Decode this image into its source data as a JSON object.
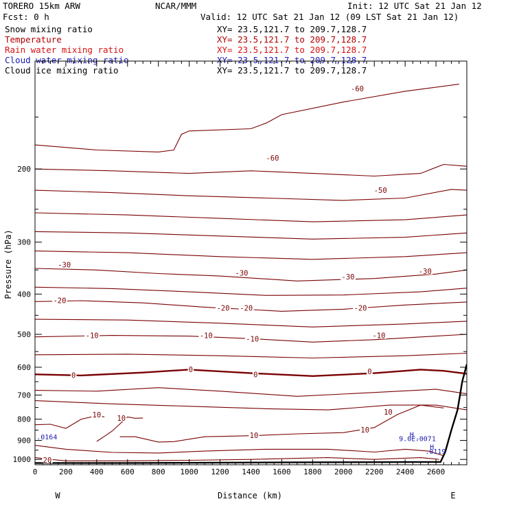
{
  "header": {
    "model": "TORERO  15km ARW",
    "center": "NCAR/MMM",
    "init": "Init: 12 UTC Sat 21 Jan 12",
    "fcst": "Fcst:    0 h",
    "valid": "Valid: 12 UTC Sat 21 Jan 12 (09 LST Sat 21 Jan 12)",
    "fields": [
      {
        "name": "Snow mixing ratio",
        "color": "#000000",
        "xy": "XY=  23.5,121.7 to 209.7,128.7"
      },
      {
        "name": "Temperature",
        "color": "#b00000",
        "xy": "XY=  23.5,121.7 to 209.7,128.7"
      },
      {
        "name": "Rain water mixing ratio",
        "color": "#d81010",
        "xy": "XY=  23.5,121.7 to 209.7,128.7"
      },
      {
        "name": "Cloud water mixing ratio",
        "color": "#1a1ab0",
        "xy": "XY=  23.5,121.7 to 209.7,128.7"
      },
      {
        "name": "Cloud ice mixing ratio",
        "color": "#000000",
        "xy": "XY=  23.5,121.7 to 209.7,128.7"
      }
    ]
  },
  "chart_data": {
    "type": "contour",
    "xlabel": "Distance (km)",
    "ylabel": "Pressure (hPa)",
    "xlim": [
      0,
      2800
    ],
    "ylim": [
      1030,
      110
    ],
    "y_log": true,
    "xticks": [
      "0",
      "200",
      "400",
      "600",
      "800",
      "1000",
      "1200",
      "1400",
      "1600",
      "1800",
      "2000",
      "2200",
      "2400",
      "2600"
    ],
    "yticks": [
      "200",
      "300",
      "400",
      "500",
      "600",
      "700",
      "800",
      "900",
      "1000"
    ],
    "end_labels": {
      "left": "W",
      "right": "E"
    },
    "temperature_contours": {
      "color": "#7a0000",
      "interval_C": 5,
      "lines": [
        {
          "level": -60,
          "pts": [
            [
              0,
              175
            ],
            [
              400,
              180
            ],
            [
              800,
              182
            ],
            [
              900,
              180
            ],
            [
              950,
              165
            ],
            [
              1000,
              162
            ],
            [
              1400,
              160
            ],
            [
              1500,
              155
            ],
            [
              1600,
              148
            ],
            [
              2000,
              138
            ],
            [
              2400,
              130
            ],
            [
              2750,
              125
            ]
          ]
        },
        {
          "level": -55,
          "pts": [
            [
              0,
              200
            ],
            [
              500,
              202
            ],
            [
              1000,
              205
            ],
            [
              1400,
              202
            ],
            [
              1800,
              205
            ],
            [
              2200,
              208
            ],
            [
              2500,
              205
            ],
            [
              2650,
              195
            ],
            [
              2800,
              197
            ]
          ]
        },
        {
          "level": -50,
          "pts": [
            [
              0,
              225
            ],
            [
              500,
              228
            ],
            [
              1000,
              232
            ],
            [
              1500,
              235
            ],
            [
              2000,
              238
            ],
            [
              2400,
              235
            ],
            [
              2700,
              224
            ],
            [
              2800,
              225
            ]
          ]
        },
        {
          "level": -45,
          "pts": [
            [
              0,
              255
            ],
            [
              600,
              258
            ],
            [
              1200,
              263
            ],
            [
              1800,
              268
            ],
            [
              2400,
              265
            ],
            [
              2800,
              258
            ]
          ]
        },
        {
          "level": -40,
          "pts": [
            [
              0,
              283
            ],
            [
              600,
              285
            ],
            [
              1200,
              290
            ],
            [
              1800,
              295
            ],
            [
              2400,
              292
            ],
            [
              2800,
              285
            ]
          ]
        },
        {
          "level": -35,
          "pts": [
            [
              0,
              315
            ],
            [
              600,
              318
            ],
            [
              1200,
              325
            ],
            [
              1800,
              330
            ],
            [
              2400,
              325
            ],
            [
              2800,
              318
            ]
          ]
        },
        {
          "level": -30,
          "pts": [
            [
              0,
              347
            ],
            [
              400,
              350
            ],
            [
              800,
              357
            ],
            [
              1200,
              362
            ],
            [
              1700,
              372
            ],
            [
              2200,
              367
            ],
            [
              2600,
              358
            ],
            [
              2800,
              350
            ]
          ]
        },
        {
          "level": -25,
          "pts": [
            [
              0,
              385
            ],
            [
              500,
              388
            ],
            [
              1000,
              395
            ],
            [
              1500,
              403
            ],
            [
              2000,
              402
            ],
            [
              2500,
              395
            ],
            [
              2800,
              387
            ]
          ]
        },
        {
          "level": -20,
          "pts": [
            [
              0,
              417
            ],
            [
              300,
              415
            ],
            [
              700,
              420
            ],
            [
              1100,
              430
            ],
            [
              1600,
              440
            ],
            [
              2000,
              435
            ],
            [
              2400,
              425
            ],
            [
              2800,
              418
            ]
          ]
        },
        {
          "level": -15,
          "pts": [
            [
              0,
              460
            ],
            [
              600,
              462
            ],
            [
              1200,
              470
            ],
            [
              1800,
              480
            ],
            [
              2400,
              472
            ],
            [
              2800,
              465
            ]
          ]
        },
        {
          "level": -10,
          "pts": [
            [
              0,
              507
            ],
            [
              500,
              503
            ],
            [
              1000,
              505
            ],
            [
              1400,
              512
            ],
            [
              1800,
              522
            ],
            [
              2200,
              515
            ],
            [
              2600,
              505
            ],
            [
              2800,
              500
            ]
          ]
        },
        {
          "level": -5,
          "pts": [
            [
              0,
              560
            ],
            [
              600,
              558
            ],
            [
              1200,
              563
            ],
            [
              1800,
              570
            ],
            [
              2400,
              563
            ],
            [
              2800,
              555
            ]
          ]
        },
        {
          "level": 0,
          "bold": true,
          "pts": [
            [
              0,
              624
            ],
            [
              300,
              628
            ],
            [
              700,
              618
            ],
            [
              1000,
              608
            ],
            [
              1400,
              620
            ],
            [
              1800,
              630
            ],
            [
              2200,
              620
            ],
            [
              2500,
              608
            ],
            [
              2650,
              612
            ],
            [
              2800,
              622
            ]
          ]
        },
        {
          "level": 5,
          "pts": [
            [
              0,
              682
            ],
            [
              400,
              685
            ],
            [
              800,
              672
            ],
            [
              1200,
              685
            ],
            [
              1700,
              705
            ],
            [
              2200,
              690
            ],
            [
              2600,
              678
            ],
            [
              2800,
              695
            ]
          ]
        },
        {
          "level": 10,
          "pts": [
            [
              0,
              722
            ],
            [
              500,
              735
            ],
            [
              1000,
              745
            ],
            [
              1500,
              755
            ],
            [
              1900,
              760
            ],
            [
              2300,
              740
            ],
            [
              2600,
              740
            ],
            [
              2800,
              760
            ]
          ]
        },
        {
          "level": 10,
          "pts": [
            [
              400,
              905
            ],
            [
              450,
              880
            ],
            [
              500,
              855
            ],
            [
              600,
              790
            ],
            [
              650,
              796
            ],
            [
              700,
              795
            ]
          ]
        },
        {
          "level": 10,
          "pts": [
            [
              550,
              882
            ],
            [
              650,
              882
            ],
            [
              800,
              908
            ],
            [
              900,
              906
            ],
            [
              1100,
              882
            ],
            [
              1400,
              877
            ],
            [
              1700,
              868
            ],
            [
              2000,
              862
            ],
            [
              2200,
              838
            ],
            [
              2350,
              780
            ],
            [
              2500,
              740
            ],
            [
              2650,
              752
            ]
          ]
        },
        {
          "level": 15,
          "pts": [
            [
              0,
              825
            ],
            [
              100,
              823
            ],
            [
              200,
              842
            ],
            [
              300,
              800
            ],
            [
              400,
              785
            ],
            [
              450,
              790
            ]
          ]
        },
        {
          "level": 15,
          "pts": [
            [
              0,
              925
            ],
            [
              200,
              945
            ],
            [
              500,
              962
            ],
            [
              800,
              965
            ],
            [
              1100,
              955
            ],
            [
              1500,
              945
            ],
            [
              1900,
              945
            ],
            [
              2200,
              960
            ],
            [
              2400,
              945
            ],
            [
              2550,
              955
            ],
            [
              2650,
              980
            ]
          ]
        },
        {
          "level": 20,
          "pts": [
            [
              0,
              990
            ],
            [
              100,
              1000
            ],
            [
              200,
              1008
            ],
            [
              600,
              1008
            ],
            [
              1000,
              1005
            ],
            [
              1400,
              1000
            ],
            [
              1900,
              990
            ],
            [
              2200,
              1000
            ],
            [
              2500,
              990
            ],
            [
              2620,
              1000
            ]
          ]
        }
      ],
      "labels": [
        {
          "text": "-60",
          "x": 2090,
          "y": 128
        },
        {
          "text": "-60",
          "x": 1540,
          "y": 188
        },
        {
          "text": "-50",
          "x": 2240,
          "y": 225
        },
        {
          "text": "-30",
          "x": 190,
          "y": 340
        },
        {
          "text": "-30",
          "x": 1340,
          "y": 356
        },
        {
          "text": "-30",
          "x": 2030,
          "y": 363
        },
        {
          "text": "-30",
          "x": 2530,
          "y": 352
        },
        {
          "text": "-20",
          "x": 160,
          "y": 414
        },
        {
          "text": "-20",
          "x": 1220,
          "y": 432
        },
        {
          "text": "-20",
          "x": 1370,
          "y": 432
        },
        {
          "text": "-20",
          "x": 2110,
          "y": 432
        },
        {
          "text": "-10",
          "x": 370,
          "y": 503
        },
        {
          "text": "-10",
          "x": 1110,
          "y": 503
        },
        {
          "text": "-10",
          "x": 1410,
          "y": 512
        },
        {
          "text": "-10",
          "x": 2230,
          "y": 503
        },
        {
          "text": "0",
          "x": 250,
          "y": 627
        },
        {
          "text": "0",
          "x": 1010,
          "y": 607
        },
        {
          "text": "0",
          "x": 1430,
          "y": 624
        },
        {
          "text": "0",
          "x": 2170,
          "y": 614
        },
        {
          "text": "10",
          "x": 400,
          "y": 780
        },
        {
          "text": "10",
          "x": 560,
          "y": 795
        },
        {
          "text": "10",
          "x": 2290,
          "y": 768
        },
        {
          "text": "10",
          "x": 2140,
          "y": 848
        },
        {
          "text": "10",
          "x": 1420,
          "y": 875
        },
        {
          "text": "20",
          "x": 80,
          "y": 1002
        }
      ]
    },
    "terrain": {
      "color": "#000000",
      "pts": [
        [
          0,
          1020
        ],
        [
          600,
          1020
        ],
        [
          1200,
          1018
        ],
        [
          1800,
          1016
        ],
        [
          2400,
          1015
        ],
        [
          2630,
          1014
        ],
        [
          2660,
          960
        ],
        [
          2700,
          850
        ],
        [
          2740,
          760
        ],
        [
          2770,
          650
        ],
        [
          2800,
          590
        ]
      ]
    },
    "cloud_water_annotations": [
      {
        "text": ".0164",
        "x": 10,
        "y": 895,
        "color": "#1a1ab0"
      },
      {
        "text": "H",
        "x": 2430,
        "y": 883,
        "color": "#1a1ab0"
      },
      {
        "text": "9.0E-",
        "x": 2360,
        "y": 904,
        "color": "#1a1ab0"
      },
      {
        "text": ".0071",
        "x": 2465,
        "y": 904,
        "color": "#1a1ab0"
      },
      {
        "text": "H",
        "x": 2560,
        "y": 945,
        "color": "#1a1ab0"
      },
      {
        "text": ".0119",
        "x": 2530,
        "y": 970,
        "color": "#1a1ab0"
      }
    ]
  }
}
